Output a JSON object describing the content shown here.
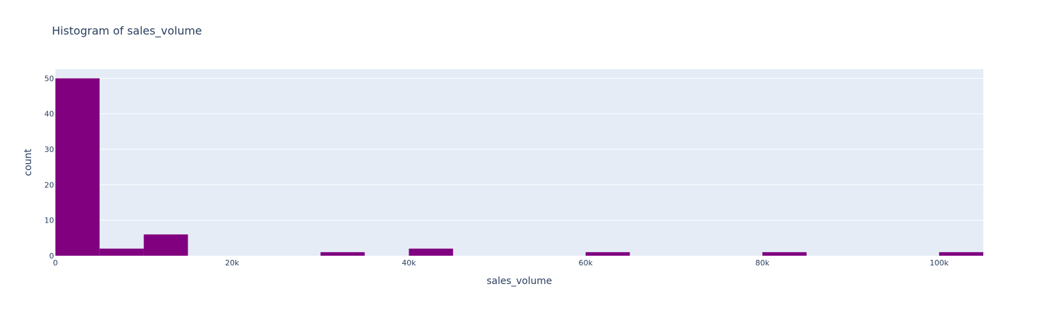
{
  "chart_data": {
    "type": "bar",
    "title": "Histogram of sales_volume",
    "xlabel": "sales_volume",
    "ylabel": "count",
    "bin_size": 5000,
    "xlim": [
      0,
      105000
    ],
    "ylim": [
      0,
      52.6
    ],
    "x_ticks": [
      {
        "value": 0,
        "label": "0"
      },
      {
        "value": 20000,
        "label": "20k"
      },
      {
        "value": 40000,
        "label": "40k"
      },
      {
        "value": 60000,
        "label": "60k"
      },
      {
        "value": 80000,
        "label": "80k"
      },
      {
        "value": 100000,
        "label": "100k"
      }
    ],
    "y_ticks": [
      {
        "value": 0,
        "label": "0"
      },
      {
        "value": 10,
        "label": "10"
      },
      {
        "value": 20,
        "label": "20"
      },
      {
        "value": 30,
        "label": "30"
      },
      {
        "value": 40,
        "label": "40"
      },
      {
        "value": 50,
        "label": "50"
      }
    ],
    "bins": [
      {
        "x0": 0,
        "x1": 5000,
        "count": 50
      },
      {
        "x0": 5000,
        "x1": 10000,
        "count": 2
      },
      {
        "x0": 10000,
        "x1": 15000,
        "count": 6
      },
      {
        "x0": 30000,
        "x1": 35000,
        "count": 1
      },
      {
        "x0": 40000,
        "x1": 45000,
        "count": 2
      },
      {
        "x0": 60000,
        "x1": 65000,
        "count": 1
      },
      {
        "x0": 80000,
        "x1": 85000,
        "count": 1
      },
      {
        "x0": 100000,
        "x1": 105000,
        "count": 1
      }
    ],
    "grid": true,
    "colors": {
      "bar": "#800080",
      "plot_bg": "#e5ecf6",
      "grid": "#ffffff",
      "text": "#2a3f5f"
    }
  }
}
